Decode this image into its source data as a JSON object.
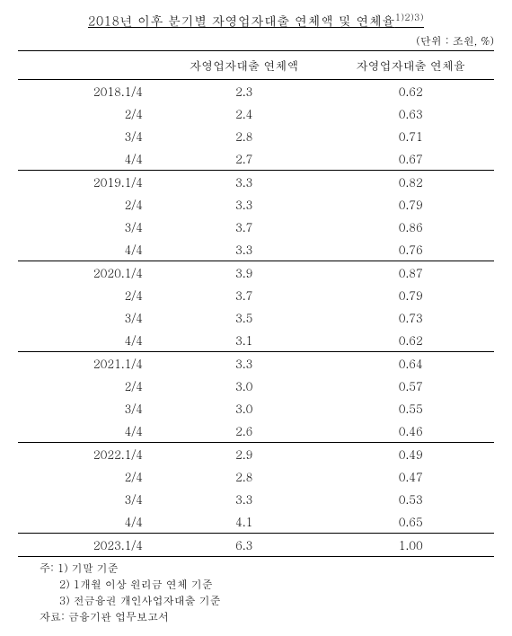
{
  "title_main": "2018년 이후 분기별 자영업자대출 연체액 및 연체율",
  "title_sup": "1)2)3)",
  "unit": "(단위 : 조원, %)",
  "columns": {
    "col1": "",
    "col2": "자영업자대출 연체액",
    "col3": "자영업자대출 연체율"
  },
  "rows": [
    {
      "label": "2018.1/4",
      "amount": "2.3",
      "rate": "0.62",
      "yearStart": true
    },
    {
      "label": "2/4",
      "amount": "2.4",
      "rate": "0.63",
      "yearStart": false
    },
    {
      "label": "3/4",
      "amount": "2.8",
      "rate": "0.71",
      "yearStart": false
    },
    {
      "label": "4/4",
      "amount": "2.7",
      "rate": "0.67",
      "yearStart": false
    },
    {
      "label": "2019.1/4",
      "amount": "3.3",
      "rate": "0.82",
      "yearStart": true
    },
    {
      "label": "2/4",
      "amount": "3.3",
      "rate": "0.79",
      "yearStart": false
    },
    {
      "label": "3/4",
      "amount": "3.7",
      "rate": "0.86",
      "yearStart": false
    },
    {
      "label": "4/4",
      "amount": "3.3",
      "rate": "0.76",
      "yearStart": false
    },
    {
      "label": "2020.1/4",
      "amount": "3.9",
      "rate": "0.87",
      "yearStart": true
    },
    {
      "label": "2/4",
      "amount": "3.7",
      "rate": "0.79",
      "yearStart": false
    },
    {
      "label": "3/4",
      "amount": "3.5",
      "rate": "0.73",
      "yearStart": false
    },
    {
      "label": "4/4",
      "amount": "3.1",
      "rate": "0.62",
      "yearStart": false
    },
    {
      "label": "2021.1/4",
      "amount": "3.3",
      "rate": "0.64",
      "yearStart": true
    },
    {
      "label": "2/4",
      "amount": "3.0",
      "rate": "0.57",
      "yearStart": false
    },
    {
      "label": "3/4",
      "amount": "3.0",
      "rate": "0.55",
      "yearStart": false
    },
    {
      "label": "4/4",
      "amount": "2.6",
      "rate": "0.46",
      "yearStart": false
    },
    {
      "label": "2022.1/4",
      "amount": "2.9",
      "rate": "0.49",
      "yearStart": true
    },
    {
      "label": "2/4",
      "amount": "2.8",
      "rate": "0.47",
      "yearStart": false
    },
    {
      "label": "3/4",
      "amount": "3.3",
      "rate": "0.53",
      "yearStart": false
    },
    {
      "label": "4/4",
      "amount": "4.1",
      "rate": "0.65",
      "yearStart": false
    },
    {
      "label": "2023.1/4",
      "amount": "6.3",
      "rate": "1.00",
      "yearStart": true
    }
  ],
  "notes": {
    "n1": "주: 1) 기말 기준",
    "n2": "2) 1개월 이상 원리금 연체 기준",
    "n3": "3) 전금융권 개인사업자대출 기준",
    "source": "자료: 금융기관 업무보고서"
  },
  "style": {
    "background": "#ffffff",
    "text_color": "#000000",
    "border_color": "#000000"
  }
}
